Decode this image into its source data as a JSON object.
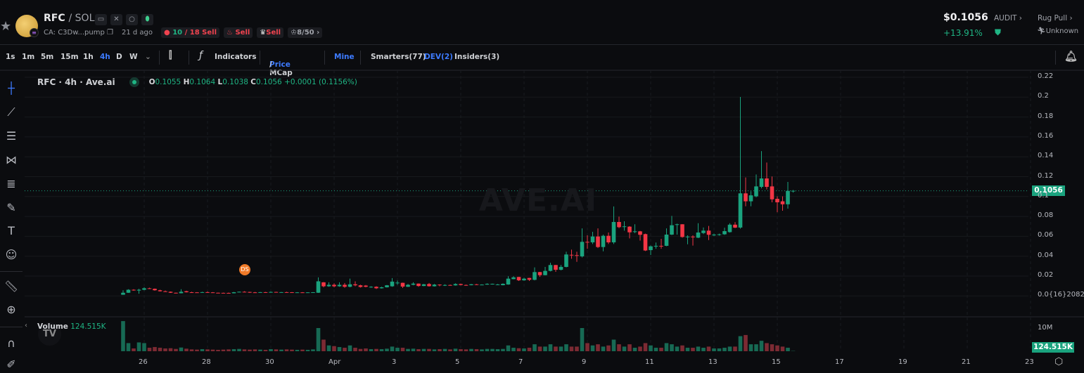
{
  "header": {
    "base": "RFC",
    "quote": "/ SOL",
    "ca": "CA: C3Dw...pump",
    "age": "21 d ago",
    "buy_count": "10",
    "sell_count": "/ 18 Sell",
    "dev_label": "Sell",
    "chef_label": "Sell",
    "holders": "8/50",
    "price": "$0.1056",
    "change": "+13.91%",
    "audit": "AUDIT",
    "rug_pull": "Rug Pull",
    "rug_status": "Unknown",
    "icons": [
      "star-icon",
      "website-icon",
      "x-icon",
      "search-icon",
      "pill-icon",
      "copy-icon",
      "money-bag-icon",
      "fire-icon",
      "chef-icon",
      "crown-icon",
      "shield-check-icon",
      "runner-icon"
    ]
  },
  "toolbar": {
    "intervals": [
      "1s",
      "1m",
      "5m",
      "15m",
      "1h",
      "4h",
      "D",
      "W"
    ],
    "active_interval": "4h",
    "indicators": "Indicators",
    "price": "Price",
    "mcap": "/ MCap",
    "mine": "Mine",
    "smarters": "Smarters(77)",
    "dev": "DEV(2)",
    "insiders": "Insiders(3)"
  },
  "legend": {
    "symbol": "RFC · 4h · Ave.ai",
    "o": "0.1055",
    "h": "0.1064",
    "l": "0.1038",
    "c": "0.1056",
    "change": "+0.0001 (0.1156%)"
  },
  "watermark": "AVE.AI",
  "marker": "DS",
  "volume": {
    "label": "Volume",
    "value": "124.515K",
    "axis_label": "10M"
  },
  "colors": {
    "up": "#1aa37e",
    "down": "#f23645",
    "accent": "#3d7bff",
    "bg": "#0b0c0f"
  },
  "chart_data": {
    "type": "candlestick",
    "interval": "4h",
    "y_ticks": [
      "0.22",
      "0.2",
      "0.18",
      "0.16",
      "0.14",
      "0.12",
      "0.1",
      "0.08",
      "0.06",
      "0.04",
      "0.02",
      "0.0{16}2082"
    ],
    "ylim": [
      0,
      0.22
    ],
    "x_ticks": [
      "26",
      "28",
      "30",
      "Apr",
      "3",
      "5",
      "7",
      "9",
      "11",
      "13",
      "15",
      "17",
      "19",
      "21",
      "23"
    ],
    "last_price": "0.1056",
    "candles": [
      [
        0.001,
        0.0055,
        0.001,
        0.003
      ],
      [
        0.003,
        0.0065,
        0.0028,
        0.006
      ],
      [
        0.006,
        0.0065,
        0.005,
        0.0055
      ],
      [
        0.0052,
        0.007,
        0.002,
        0.006
      ],
      [
        0.006,
        0.0085,
        0.0055,
        0.0075
      ],
      [
        0.0075,
        0.008,
        0.0068,
        0.007
      ],
      [
        0.007,
        0.0072,
        0.005,
        0.0055
      ],
      [
        0.0055,
        0.006,
        0.0042,
        0.0045
      ],
      [
        0.0045,
        0.0052,
        0.0038,
        0.004
      ],
      [
        0.004,
        0.0042,
        0.0028,
        0.003
      ],
      [
        0.003,
        0.0032,
        0.0022,
        0.0025
      ],
      [
        0.0025,
        0.0065,
        0.0024,
        0.004
      ],
      [
        0.0045,
        0.005,
        0.0033,
        0.0035
      ],
      [
        0.0035,
        0.004,
        0.0032,
        0.0034
      ],
      [
        0.0034,
        0.0036,
        0.0031,
        0.0033
      ],
      [
        0.0033,
        0.004,
        0.0032,
        0.0036
      ],
      [
        0.0036,
        0.0042,
        0.0033,
        0.0034
      ],
      [
        0.0034,
        0.0036,
        0.0028,
        0.003
      ],
      [
        0.003,
        0.0032,
        0.0028,
        0.0029
      ],
      [
        0.0029,
        0.0031,
        0.0027,
        0.0028
      ],
      [
        0.0028,
        0.0032,
        0.0022,
        0.0025
      ],
      [
        0.0025,
        0.0038,
        0.0024,
        0.0035
      ],
      [
        0.0035,
        0.0042,
        0.0034,
        0.004
      ],
      [
        0.004,
        0.0045,
        0.0036,
        0.0038
      ],
      [
        0.0038,
        0.004,
        0.0028,
        0.0034
      ],
      [
        0.0034,
        0.0038,
        0.003,
        0.0032
      ],
      [
        0.0032,
        0.0038,
        0.003,
        0.0036
      ],
      [
        0.0036,
        0.0038,
        0.0029,
        0.0031
      ],
      [
        0.0031,
        0.0042,
        0.003,
        0.0038
      ],
      [
        0.0038,
        0.004,
        0.0033,
        0.0034
      ],
      [
        0.0034,
        0.0038,
        0.0032,
        0.0036
      ],
      [
        0.0036,
        0.004,
        0.0034,
        0.0035
      ],
      [
        0.0035,
        0.0037,
        0.0032,
        0.0033
      ],
      [
        0.0033,
        0.0036,
        0.0031,
        0.0034
      ],
      [
        0.0034,
        0.0036,
        0.0032,
        0.0033
      ],
      [
        0.0033,
        0.0035,
        0.0031,
        0.0034
      ],
      [
        0.0034,
        0.0036,
        0.0032,
        0.0035
      ],
      [
        0.003,
        0.0185,
        0.0028,
        0.0145
      ],
      [
        0.0135,
        0.0138,
        0.0085,
        0.0095
      ],
      [
        0.0095,
        0.0135,
        0.009,
        0.011
      ],
      [
        0.011,
        0.0125,
        0.0085,
        0.0095
      ],
      [
        0.0095,
        0.0135,
        0.009,
        0.011
      ],
      [
        0.011,
        0.0128,
        0.008,
        0.009
      ],
      [
        0.009,
        0.0172,
        0.0085,
        0.0115
      ],
      [
        0.0115,
        0.0145,
        0.0095,
        0.0105
      ],
      [
        0.0105,
        0.011,
        0.0082,
        0.0088
      ],
      [
        0.0102,
        0.0108,
        0.0085,
        0.009
      ],
      [
        0.0085,
        0.0095,
        0.008,
        0.009
      ],
      [
        0.009,
        0.0095,
        0.0068,
        0.0075
      ],
      [
        0.0075,
        0.009,
        0.0072,
        0.0085
      ],
      [
        0.0085,
        0.0108,
        0.0082,
        0.0105
      ],
      [
        0.0095,
        0.0178,
        0.009,
        0.0142
      ],
      [
        0.0128,
        0.0152,
        0.011,
        0.0132
      ],
      [
        0.013,
        0.0132,
        0.0078,
        0.0092
      ],
      [
        0.009,
        0.0118,
        0.0088,
        0.011
      ],
      [
        0.011,
        0.0135,
        0.0105,
        0.0122
      ],
      [
        0.0122,
        0.0124,
        0.009,
        0.0098
      ],
      [
        0.0098,
        0.0118,
        0.0096,
        0.0115
      ],
      [
        0.0118,
        0.0128,
        0.0092,
        0.0096
      ],
      [
        0.0095,
        0.0118,
        0.0093,
        0.0112
      ],
      [
        0.0112,
        0.0115,
        0.0095,
        0.0106
      ],
      [
        0.0104,
        0.0115,
        0.0098,
        0.0108
      ],
      [
        0.0108,
        0.0112,
        0.0102,
        0.0104
      ],
      [
        0.0104,
        0.0125,
        0.0102,
        0.0118
      ],
      [
        0.0118,
        0.0122,
        0.0104,
        0.0108
      ],
      [
        0.0108,
        0.0112,
        0.0102,
        0.0106
      ],
      [
        0.0106,
        0.0118,
        0.0104,
        0.0115
      ],
      [
        0.0115,
        0.0118,
        0.0108,
        0.011
      ],
      [
        0.011,
        0.0115,
        0.0106,
        0.0112
      ],
      [
        0.0112,
        0.0125,
        0.011,
        0.012
      ],
      [
        0.0118,
        0.0122,
        0.0112,
        0.012
      ],
      [
        0.0112,
        0.0118,
        0.0108,
        0.0114
      ],
      [
        0.0106,
        0.0125,
        0.0104,
        0.012
      ],
      [
        0.0113,
        0.0196,
        0.011,
        0.0172
      ],
      [
        0.0167,
        0.0196,
        0.0165,
        0.0185
      ],
      [
        0.0189,
        0.019,
        0.0148,
        0.0155
      ],
      [
        0.0155,
        0.0182,
        0.015,
        0.0172
      ],
      [
        0.0179,
        0.018,
        0.0148,
        0.016
      ],
      [
        0.016,
        0.0285,
        0.0155,
        0.0238
      ],
      [
        0.0238,
        0.024,
        0.019,
        0.0207
      ],
      [
        0.0207,
        0.029,
        0.0205,
        0.025
      ],
      [
        0.025,
        0.0332,
        0.0245,
        0.0309
      ],
      [
        0.0309,
        0.031,
        0.024,
        0.0261
      ],
      [
        0.0261,
        0.0309,
        0.0255,
        0.029
      ],
      [
        0.029,
        0.0443,
        0.0285,
        0.0415
      ],
      [
        0.0412,
        0.0464,
        0.0372,
        0.0408
      ],
      [
        0.0408,
        0.0443,
        0.0341,
        0.0405
      ],
      [
        0.0396,
        0.0678,
        0.0385,
        0.0542
      ],
      [
        0.0542,
        0.0608,
        0.0473,
        0.0538
      ],
      [
        0.0537,
        0.0643,
        0.052,
        0.0596
      ],
      [
        0.0596,
        0.0678,
        0.048,
        0.049
      ],
      [
        0.049,
        0.0615,
        0.0447,
        0.0603
      ],
      [
        0.0603,
        0.0636,
        0.052,
        0.0537
      ],
      [
        0.0537,
        0.0898,
        0.052,
        0.0742
      ],
      [
        0.0742,
        0.0796,
        0.068,
        0.069
      ],
      [
        0.0695,
        0.0749,
        0.0655,
        0.0698
      ],
      [
        0.0695,
        0.07,
        0.0577,
        0.0638
      ],
      [
        0.0645,
        0.0719,
        0.063,
        0.0648
      ],
      [
        0.0648,
        0.0652,
        0.0555,
        0.0613
      ],
      [
        0.062,
        0.0625,
        0.045,
        0.0455
      ],
      [
        0.0459,
        0.0505,
        0.041,
        0.0497
      ],
      [
        0.0497,
        0.0535,
        0.0473,
        0.0502
      ],
      [
        0.0502,
        0.0572,
        0.0473,
        0.0498
      ],
      [
        0.0502,
        0.0678,
        0.0498,
        0.0615
      ],
      [
        0.0615,
        0.0803,
        0.061,
        0.0709
      ],
      [
        0.0712,
        0.0725,
        0.0615,
        0.0719
      ],
      [
        0.0719,
        0.072,
        0.0584,
        0.0591
      ],
      [
        0.0591,
        0.0608,
        0.0518,
        0.0595
      ],
      [
        0.0595,
        0.0608,
        0.0504,
        0.059
      ],
      [
        0.0584,
        0.073,
        0.058,
        0.0636
      ],
      [
        0.0631,
        0.0686,
        0.062,
        0.0655
      ],
      [
        0.0655,
        0.0702,
        0.056,
        0.0613
      ],
      [
        0.0613,
        0.0625,
        0.06,
        0.0615
      ],
      [
        0.0615,
        0.0625,
        0.0605,
        0.0618
      ],
      [
        0.0618,
        0.0685,
        0.0612,
        0.065
      ],
      [
        0.064,
        0.073,
        0.0635,
        0.0715
      ],
      [
        0.0715,
        0.074,
        0.068,
        0.0685
      ],
      [
        0.0686,
        0.2,
        0.0675,
        0.103
      ],
      [
        0.103,
        0.119,
        0.09,
        0.095
      ],
      [
        0.095,
        0.105,
        0.09,
        0.101
      ],
      [
        0.1,
        0.122,
        0.099,
        0.11
      ],
      [
        0.1095,
        0.1455,
        0.108,
        0.118
      ],
      [
        0.118,
        0.134,
        0.107,
        0.1095
      ],
      [
        0.11,
        0.12,
        0.094,
        0.097
      ],
      [
        0.0975,
        0.1,
        0.084,
        0.094
      ],
      [
        0.095,
        0.1,
        0.0855,
        0.092
      ],
      [
        0.092,
        0.1145,
        0.0876,
        0.1055
      ],
      [
        0.1055,
        0.1064,
        0.1038,
        0.1056
      ]
    ],
    "volumes_m": [
      13,
      3.5,
      1.2,
      3.8,
      3.5,
      1.5,
      1.8,
      1.5,
      1.2,
      1.3,
      1,
      1.6,
      1.1,
      0.8,
      0.7,
      0.9,
      0.8,
      0.7,
      0.6,
      0.7,
      0.8,
      0.9,
      1,
      0.8,
      0.7,
      0.8,
      0.7,
      0.6,
      0.9,
      0.8,
      0.7,
      0.8,
      0.7,
      0.6,
      0.7,
      0.6,
      0.8,
      10,
      5,
      2.5,
      2.2,
      1.8,
      1.5,
      2.5,
      1.5,
      1,
      1.2,
      0.9,
      1,
      0.9,
      1.1,
      2,
      1.5,
      1.5,
      1,
      1.1,
      0.9,
      1,
      1,
      0.8,
      0.9,
      1,
      0.8,
      1.1,
      0.9,
      0.8,
      1,
      0.9,
      0.8,
      1,
      1,
      0.9,
      1,
      2.5,
      1.5,
      1.3,
      1.2,
      1.5,
      3,
      2,
      2,
      3,
      2,
      2,
      3,
      2,
      2,
      10,
      3.5,
      2.5,
      3,
      2,
      2.5,
      5,
      3,
      2,
      3,
      1.5,
      2,
      3.5,
      2.5,
      1.5,
      1.5,
      3.5,
      3,
      2,
      2.5,
      1.5,
      1.5,
      2,
      1.5,
      2,
      1.2,
      1.2,
      1.5,
      2,
      2,
      6.5,
      7,
      3,
      3,
      4.5,
      3.5,
      3,
      2.5,
      2,
      1.5,
      0.12
    ]
  }
}
